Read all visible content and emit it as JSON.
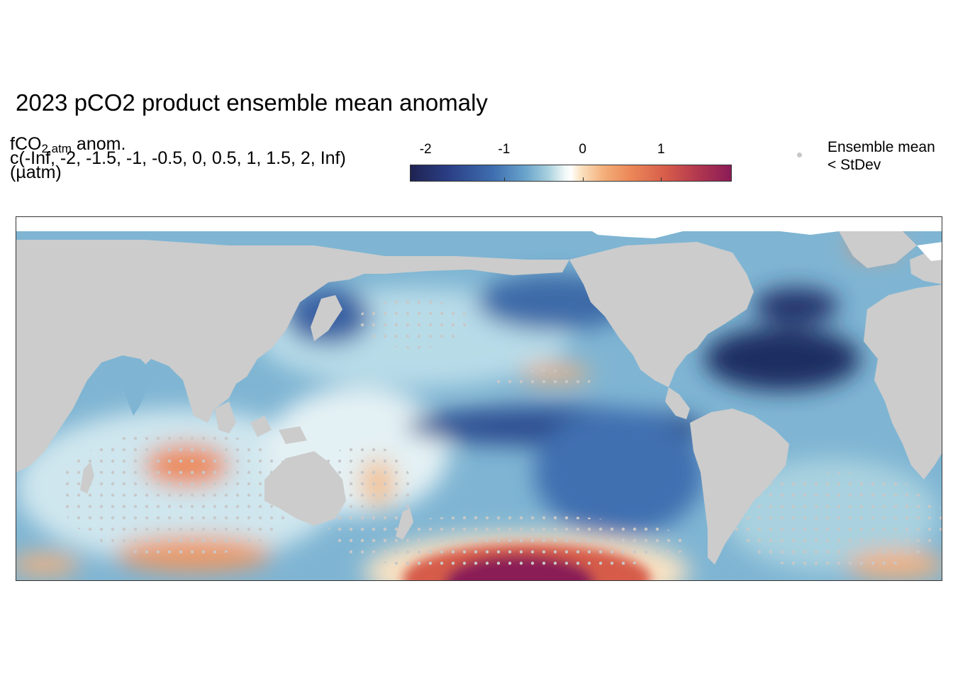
{
  "title": "2023 pCO2 product ensemble mean anomaly",
  "legend": {
    "variable_main": "fCO",
    "variable_sub": "2,atm",
    "variable_suffix": " anom.",
    "breaks_text": "c(-Inf, -2, -1.5, -1, -0.5, 0, 0.5, 1, 1.5, 2, Inf)",
    "units": "(µatm)",
    "ticks": [
      {
        "label": "-2",
        "value": -2
      },
      {
        "label": "-1",
        "value": -1
      },
      {
        "label": "0",
        "value": 0
      },
      {
        "label": "1",
        "value": 1
      }
    ],
    "range": [
      -2.2,
      1.9
    ],
    "colors": [
      "#1f2352",
      "#3f6fb0",
      "#a9d1df",
      "#ffffff",
      "#f4b07b",
      "#d65b4a",
      "#8a1b56"
    ]
  },
  "stipple_legend": {
    "line1": "Ensemble mean",
    "line2": "< StDev",
    "dot_color": "#c8c8c8"
  },
  "map": {
    "land_color": "#cccccc",
    "projection": "equirectangular, Pacific-centred"
  }
}
